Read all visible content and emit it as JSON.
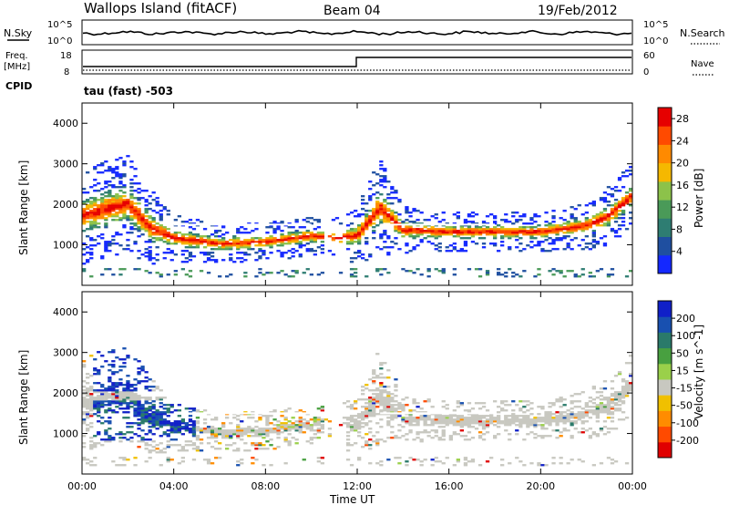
{
  "header": {
    "station": "Wallops Island (fitACF)",
    "beam": "Beam 04",
    "date": "19/Feb/2012"
  },
  "status": {
    "nsky_label": "N.Sky",
    "nsky_ticks": [
      "10^5",
      "10^0"
    ],
    "nsearch_label": "N.Search",
    "nsearch_ticks": [
      "10^5",
      "10^0"
    ],
    "freq_label": "Freq.",
    "freq_unit": "[MHz]",
    "freq_ticks": [
      "18",
      "8"
    ],
    "nave_label": "Nave",
    "nave_ticks": [
      "60",
      "0"
    ],
    "cpid_label": "CPID",
    "cpid_value": "tau (fast) -503"
  },
  "colors": {
    "power_scale": [
      "#1428ff",
      "#1f4fa0",
      "#2e7d72",
      "#4a9a58",
      "#8cc24a",
      "#f5b800",
      "#ff8a00",
      "#ff4a00",
      "#e60000"
    ],
    "velocity_scale": [
      "#1020c8",
      "#1850b0",
      "#2a7a6a",
      "#48a040",
      "#9ad04a",
      "#c8c8c0",
      "#f0c000",
      "#ff8c00",
      "#ff4a00",
      "#e00000"
    ]
  },
  "chart_data": [
    {
      "type": "heatmap",
      "title": "Power [dB]",
      "ylabel": "Slant Range [km]",
      "xlabel": "Time UT",
      "x_ticks": [
        "00:00",
        "04:00",
        "08:00",
        "12:00",
        "16:00",
        "20:00",
        "00:00"
      ],
      "y_ticks": [
        "1000",
        "2000",
        "3000",
        "4000"
      ],
      "ylim": [
        0,
        4500
      ],
      "colorbar_label": "Power [dB]",
      "colorbar_ticks": [
        "4",
        "8",
        "12",
        "16",
        "20",
        "24",
        "28"
      ],
      "colorbar_range": [
        0,
        30
      ],
      "bands": [
        {
          "name": "main echo",
          "hours": [
            0,
            2,
            3,
            4,
            6,
            8,
            10,
            11,
            12,
            13,
            14,
            16,
            18,
            20,
            22,
            23,
            24
          ],
          "center_km": [
            1700,
            2000,
            1400,
            1150,
            1000,
            1050,
            1200,
            1150,
            1200,
            1900,
            1350,
            1300,
            1300,
            1300,
            1450,
            1700,
            2200
          ],
          "width_km": [
            500,
            500,
            400,
            250,
            200,
            200,
            200,
            200,
            300,
            500,
            250,
            200,
            200,
            200,
            250,
            300,
            350
          ]
        }
      ]
    },
    {
      "type": "heatmap",
      "title": "Velocity [m s^-1]",
      "ylabel": "Slant Range [km]",
      "xlabel": "Time UT",
      "x_ticks": [
        "00:00",
        "04:00",
        "08:00",
        "12:00",
        "16:00",
        "20:00",
        "00:00"
      ],
      "y_ticks": [
        "1000",
        "2000",
        "3000",
        "4000"
      ],
      "ylim": [
        0,
        4500
      ],
      "colorbar_label": "Velocity [m s^-1]",
      "colorbar_ticks": [
        "200",
        "100",
        "50",
        "15",
        "-15",
        "-50",
        "-100",
        "-200"
      ],
      "colorbar_range": [
        -250,
        250
      ]
    }
  ]
}
